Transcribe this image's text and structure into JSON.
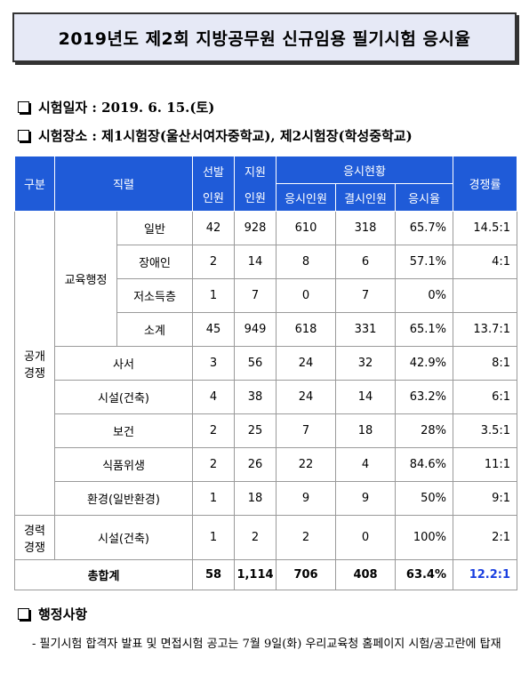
{
  "title": "2019년도 제2회 지방공무원 신규임용 필기시험 응시율",
  "info": {
    "date_label": "시험일자 : 2019. 6. 15.(토)",
    "place_label": "시험장소 : 제1시험장(울산서여자중학교), 제2시험장(학성중학교)"
  },
  "table": {
    "headers": {
      "group": "구분",
      "job": "직렬",
      "selected_1": "선발",
      "selected_2": "인원",
      "applied_1": "지원",
      "applied_2": "인원",
      "status": "응시현황",
      "attended": "응시인원",
      "absent": "결시인원",
      "rate": "응시율",
      "competition": "경쟁률"
    },
    "groups": {
      "public_1": "공개",
      "public_2": "경쟁",
      "career_1": "경력",
      "career_2": "경쟁",
      "edu_admin": "교육행정"
    },
    "rows": [
      {
        "job": "일반",
        "sel": "42",
        "app": "928",
        "att": "610",
        "abs": "318",
        "rate": "65.7%",
        "comp": "14.5:1"
      },
      {
        "job": "장애인",
        "sel": "2",
        "app": "14",
        "att": "8",
        "abs": "6",
        "rate": "57.1%",
        "comp": "4:1"
      },
      {
        "job": "저소득층",
        "sel": "1",
        "app": "7",
        "att": "0",
        "abs": "7",
        "rate": "0%",
        "comp": ""
      },
      {
        "job": "소계",
        "sel": "45",
        "app": "949",
        "att": "618",
        "abs": "331",
        "rate": "65.1%",
        "comp": "13.7:1"
      },
      {
        "job": "사서",
        "sel": "3",
        "app": "56",
        "att": "24",
        "abs": "32",
        "rate": "42.9%",
        "comp": "8:1"
      },
      {
        "job": "시설(건축)",
        "sel": "4",
        "app": "38",
        "att": "24",
        "abs": "14",
        "rate": "63.2%",
        "comp": "6:1"
      },
      {
        "job": "보건",
        "sel": "2",
        "app": "25",
        "att": "7",
        "abs": "18",
        "rate": "28%",
        "comp": "3.5:1"
      },
      {
        "job": "식품위생",
        "sel": "2",
        "app": "26",
        "att": "22",
        "abs": "4",
        "rate": "84.6%",
        "comp": "11:1"
      },
      {
        "job": "환경(일반환경)",
        "sel": "1",
        "app": "18",
        "att": "9",
        "abs": "9",
        "rate": "50%",
        "comp": "9:1"
      },
      {
        "job": "시설(건축)",
        "sel": "1",
        "app": "2",
        "att": "2",
        "abs": "0",
        "rate": "100%",
        "comp": "2:1"
      }
    ],
    "total": {
      "label": "총합계",
      "sel": "58",
      "app": "1,114",
      "att": "706",
      "abs": "408",
      "rate": "63.4%",
      "comp": "12.2:1"
    }
  },
  "admin": {
    "heading": "행정사항",
    "note": "- 필기시험 합격자 발표 및 면접시험 공고는 7월 9일(화) 우리교육청 홈페이지 시험/공고란에 탑재"
  }
}
